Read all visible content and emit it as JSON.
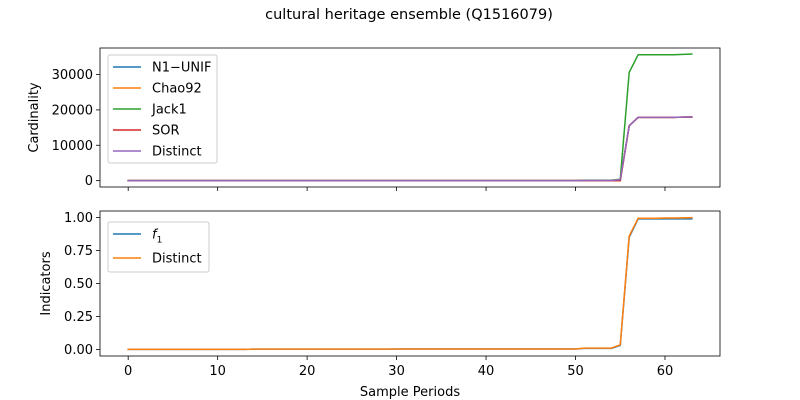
{
  "figure": {
    "title": "cultural heritage ensemble (Q1516079)"
  },
  "chart_data": [
    {
      "type": "line",
      "ylabel": "Cardinality",
      "xlabel": "",
      "xlim": [
        -3.15,
        66.15
      ],
      "ylim": [
        -1800,
        37500
      ],
      "xticks": [
        0,
        10,
        20,
        30,
        40,
        50,
        60
      ],
      "yticks": [
        0,
        10000,
        20000,
        30000
      ],
      "ytick_labels": [
        "0",
        "10000",
        "20000",
        "30000"
      ],
      "show_xtick_labels": false,
      "grid": false,
      "legend_position": "upper-left",
      "x": [
        0,
        1,
        2,
        3,
        4,
        5,
        6,
        7,
        8,
        9,
        10,
        11,
        12,
        13,
        14,
        15,
        16,
        17,
        18,
        19,
        20,
        21,
        22,
        23,
        24,
        25,
        26,
        27,
        28,
        29,
        30,
        31,
        32,
        33,
        34,
        35,
        36,
        37,
        38,
        39,
        40,
        41,
        42,
        43,
        44,
        45,
        46,
        47,
        48,
        49,
        50,
        51,
        52,
        53,
        54,
        55,
        56,
        57,
        58,
        59,
        60,
        61,
        62,
        63
      ],
      "series": [
        {
          "name": "N1−UNIF",
          "color": "#1f77b4",
          "values": [
            0,
            0,
            0,
            0,
            0,
            0,
            0,
            0,
            0,
            0,
            0,
            0,
            0,
            0,
            0,
            0,
            0,
            0,
            0,
            0,
            0,
            0,
            0,
            0,
            0,
            0,
            0,
            0,
            0,
            0,
            0,
            0,
            0,
            0,
            0,
            0,
            0,
            0,
            0,
            0,
            0,
            0,
            0,
            0,
            0,
            0,
            0,
            0,
            0,
            0,
            0,
            0,
            0,
            0,
            0,
            0,
            15500,
            17900,
            17900,
            17900,
            17900,
            17900,
            17950,
            18000
          ]
        },
        {
          "name": "Chao92",
          "color": "#ff7f0e",
          "values": [
            0,
            0,
            0,
            0,
            0,
            0,
            0,
            0,
            0,
            0,
            0,
            0,
            0,
            0,
            0,
            0,
            0,
            0,
            0,
            0,
            0,
            0,
            0,
            0,
            0,
            0,
            0,
            0,
            0,
            0,
            0,
            0,
            0,
            0,
            0,
            0,
            0,
            0,
            0,
            0,
            0,
            0,
            0,
            0,
            0,
            0,
            0,
            0,
            0,
            0,
            0,
            0,
            0,
            0,
            0,
            0,
            15500,
            17900,
            17900,
            17900,
            17900,
            17900,
            17950,
            18000
          ]
        },
        {
          "name": "Jack1",
          "color": "#2ca02c",
          "values": [
            0,
            0,
            0,
            0,
            0,
            0,
            0,
            0,
            0,
            0,
            0,
            0,
            0,
            0,
            0,
            0,
            0,
            0,
            0,
            0,
            0,
            0,
            0,
            0,
            0,
            0,
            0,
            0,
            0,
            0,
            0,
            0,
            0,
            0,
            0,
            0,
            0,
            0,
            0,
            0,
            0,
            0,
            0,
            0,
            0,
            0,
            0,
            0,
            0,
            0,
            0,
            100,
            100,
            100,
            100,
            400,
            30600,
            35600,
            35600,
            35600,
            35600,
            35600,
            35700,
            35800
          ]
        },
        {
          "name": "SOR",
          "color": "#d62728",
          "values": [
            0,
            0,
            0,
            0,
            0,
            0,
            0,
            0,
            0,
            0,
            0,
            0,
            0,
            0,
            0,
            0,
            0,
            0,
            0,
            0,
            0,
            0,
            0,
            0,
            0,
            0,
            0,
            0,
            0,
            0,
            0,
            0,
            0,
            0,
            0,
            0,
            0,
            0,
            0,
            0,
            0,
            0,
            0,
            0,
            0,
            0,
            0,
            0,
            0,
            0,
            0,
            0,
            0,
            0,
            0,
            0,
            15500,
            17900,
            17900,
            17900,
            17900,
            17900,
            17950,
            18000
          ]
        },
        {
          "name": "Distinct",
          "color": "#9467bd",
          "values": [
            0,
            0,
            0,
            0,
            0,
            0,
            0,
            0,
            0,
            0,
            0,
            0,
            0,
            0,
            0,
            0,
            0,
            0,
            0,
            0,
            0,
            0,
            0,
            0,
            0,
            0,
            0,
            0,
            0,
            0,
            0,
            0,
            0,
            0,
            0,
            0,
            0,
            0,
            0,
            0,
            0,
            0,
            0,
            0,
            0,
            0,
            0,
            0,
            0,
            0,
            0,
            50,
            50,
            50,
            50,
            300,
            15500,
            17900,
            17900,
            17900,
            17900,
            17900,
            17950,
            18000
          ]
        }
      ]
    },
    {
      "type": "line",
      "ylabel": "Indicators",
      "xlabel": "Sample Periods",
      "xlim": [
        -3.15,
        66.15
      ],
      "ylim": [
        -0.05,
        1.05
      ],
      "xticks": [
        0,
        10,
        20,
        30,
        40,
        50,
        60
      ],
      "xtick_labels": [
        "0",
        "10",
        "20",
        "30",
        "40",
        "50",
        "60"
      ],
      "yticks": [
        0,
        0.25,
        0.5,
        0.75,
        1.0
      ],
      "ytick_labels": [
        "0.00",
        "0.25",
        "0.50",
        "0.75",
        "1.00"
      ],
      "show_xtick_labels": true,
      "grid": false,
      "legend_position": "upper-left",
      "x": [
        0,
        1,
        2,
        3,
        4,
        5,
        6,
        7,
        8,
        9,
        10,
        11,
        12,
        13,
        14,
        15,
        16,
        17,
        18,
        19,
        20,
        21,
        22,
        23,
        24,
        25,
        26,
        27,
        28,
        29,
        30,
        31,
        32,
        33,
        34,
        35,
        36,
        37,
        38,
        39,
        40,
        41,
        42,
        43,
        44,
        45,
        46,
        47,
        48,
        49,
        50,
        51,
        52,
        53,
        54,
        55,
        56,
        57,
        58,
        59,
        60,
        61,
        62,
        63
      ],
      "series": [
        {
          "name": "f1",
          "name_main": "f",
          "name_sub": "1",
          "color": "#1f77b4",
          "values": [
            0,
            0,
            0,
            0,
            0,
            0,
            0,
            0,
            0,
            0,
            0,
            0,
            0,
            0,
            0.002,
            0.002,
            0.002,
            0.002,
            0.002,
            0.002,
            0.002,
            0.002,
            0.002,
            0.002,
            0.002,
            0.002,
            0.002,
            0.002,
            0.002,
            0.002,
            0.003,
            0.003,
            0.003,
            0.003,
            0.003,
            0.003,
            0.003,
            0.003,
            0.003,
            0.003,
            0.003,
            0.003,
            0.003,
            0.003,
            0.003,
            0.003,
            0.003,
            0.003,
            0.003,
            0.003,
            0.003,
            0.008,
            0.008,
            0.008,
            0.008,
            0.03,
            0.85,
            0.99,
            0.99,
            0.99,
            0.99,
            0.99,
            0.99,
            0.99
          ]
        },
        {
          "name": "Distinct",
          "color": "#ff7f0e",
          "values": [
            0,
            0,
            0,
            0,
            0,
            0,
            0,
            0,
            0,
            0,
            0,
            0,
            0,
            0,
            0.002,
            0.002,
            0.002,
            0.002,
            0.002,
            0.002,
            0.002,
            0.002,
            0.002,
            0.002,
            0.002,
            0.002,
            0.002,
            0.002,
            0.002,
            0.002,
            0.003,
            0.003,
            0.003,
            0.003,
            0.003,
            0.003,
            0.003,
            0.003,
            0.003,
            0.003,
            0.003,
            0.003,
            0.003,
            0.003,
            0.003,
            0.003,
            0.003,
            0.003,
            0.003,
            0.003,
            0.003,
            0.01,
            0.01,
            0.01,
            0.01,
            0.035,
            0.86,
            0.995,
            0.995,
            0.995,
            0.997,
            0.997,
            0.998,
            1.0
          ]
        }
      ]
    }
  ]
}
